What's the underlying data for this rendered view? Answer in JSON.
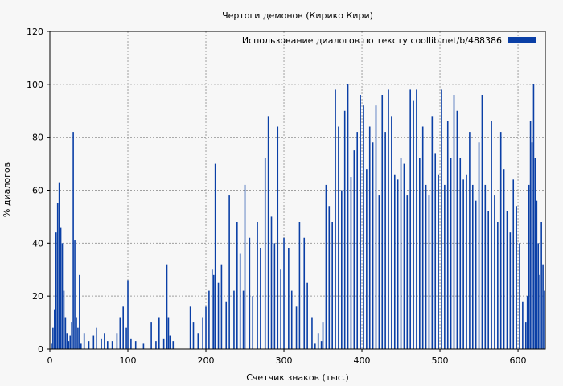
{
  "chart_data": {
    "type": "bar",
    "title": "Чертоги демонов (Кирико Кири)",
    "xlabel": "Счетчик знаков (тыс.)",
    "ylabel": "% диалогов",
    "xlim": [
      0,
      635
    ],
    "ylim": [
      0,
      120
    ],
    "x_ticks": [
      0,
      100,
      200,
      300,
      400,
      500,
      600
    ],
    "y_ticks": [
      0,
      20,
      40,
      60,
      80,
      100,
      120
    ],
    "grid": true,
    "legend_position": "top-right",
    "series": [
      {
        "name": "Использование диалогов по тексту  coollib.net/b/488386",
        "color": "#0a3fa6",
        "x": [
          2,
          4,
          6,
          8,
          10,
          12,
          14,
          16,
          18,
          20,
          22,
          24,
          26,
          28,
          30,
          32,
          34,
          36,
          38,
          40,
          44,
          50,
          56,
          60,
          66,
          70,
          74,
          80,
          86,
          90,
          94,
          98,
          100,
          104,
          110,
          120,
          130,
          136,
          140,
          146,
          150,
          152,
          154,
          158,
          180,
          184,
          190,
          196,
          200,
          204,
          208,
          210,
          212,
          216,
          220,
          226,
          230,
          236,
          240,
          244,
          248,
          250,
          256,
          260,
          266,
          270,
          276,
          280,
          284,
          288,
          292,
          296,
          300,
          306,
          310,
          316,
          320,
          326,
          330,
          336,
          340,
          344,
          348,
          350,
          354,
          358,
          362,
          366,
          370,
          374,
          378,
          382,
          386,
          390,
          394,
          398,
          402,
          406,
          410,
          414,
          418,
          422,
          426,
          430,
          434,
          438,
          442,
          446,
          450,
          454,
          458,
          462,
          466,
          470,
          474,
          478,
          482,
          486,
          490,
          494,
          498,
          502,
          506,
          510,
          514,
          518,
          522,
          526,
          530,
          534,
          538,
          542,
          546,
          550,
          554,
          558,
          562,
          566,
          570,
          574,
          578,
          582,
          586,
          590,
          594,
          598,
          602,
          606,
          610,
          612,
          614,
          616,
          618,
          620,
          622,
          624,
          626,
          628,
          630,
          632,
          634
        ],
        "values": [
          2,
          8,
          15,
          44,
          55,
          63,
          46,
          40,
          22,
          12,
          6,
          3,
          5,
          10,
          82,
          41,
          12,
          8,
          28,
          2,
          6,
          3,
          5,
          8,
          4,
          6,
          3,
          3,
          6,
          12,
          16,
          8,
          26,
          4,
          3,
          2,
          10,
          3,
          12,
          4,
          32,
          12,
          5,
          3,
          16,
          10,
          6,
          12,
          16,
          22,
          30,
          28,
          70,
          25,
          32,
          18,
          58,
          22,
          48,
          36,
          22,
          62,
          42,
          20,
          48,
          38,
          72,
          88,
          50,
          40,
          84,
          30,
          42,
          38,
          22,
          16,
          48,
          42,
          25,
          12,
          2,
          6,
          3,
          10,
          62,
          54,
          48,
          98,
          84,
          60,
          90,
          100,
          65,
          75,
          82,
          96,
          92,
          68,
          84,
          78,
          92,
          58,
          96,
          82,
          98,
          88,
          66,
          64,
          72,
          70,
          58,
          98,
          94,
          98,
          72,
          84,
          62,
          58,
          88,
          74,
          66,
          98,
          62,
          86,
          72,
          96,
          90,
          72,
          64,
          66,
          82,
          62,
          56,
          78,
          96,
          62,
          52,
          86,
          58,
          48,
          82,
          68,
          52,
          44,
          64,
          54,
          40,
          18,
          10,
          20,
          62,
          86,
          78,
          100,
          72,
          56,
          40,
          28,
          48,
          32,
          22
        ]
      }
    ]
  }
}
